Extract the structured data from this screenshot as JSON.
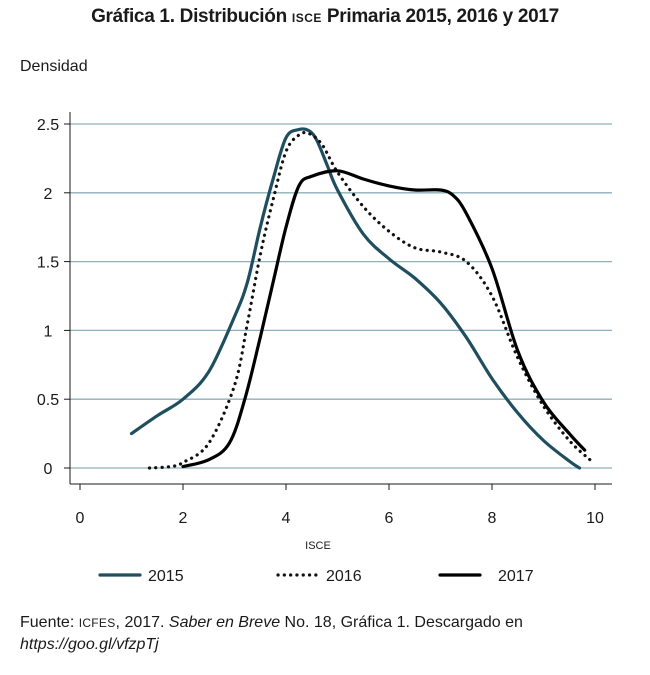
{
  "chart_data": {
    "type": "line",
    "title_pre": "Gráfica 1. Distribución ",
    "title_sc": "ISCE",
    "title_post": " Primaria 2015, 2016 y 2017",
    "ylabel": "Densidad",
    "xlabel": "ISCE",
    "xlim": [
      0,
      10
    ],
    "ylim": [
      0,
      2.5
    ],
    "xticks": [
      "0",
      "2",
      "4",
      "6",
      "8",
      "10"
    ],
    "yticks": [
      "0",
      "0.5",
      "1",
      "1.5",
      "2",
      "2.5"
    ],
    "grid": "horizontal",
    "legend_position": "bottom",
    "series": [
      {
        "name": "2015",
        "color": "#1f4e5f",
        "style": "solid",
        "x": [
          1.0,
          1.5,
          2.0,
          2.5,
          3.0,
          3.25,
          3.5,
          3.75,
          4.0,
          4.25,
          4.45,
          4.6,
          4.8,
          5.0,
          5.5,
          6.0,
          6.5,
          7.0,
          7.5,
          8.0,
          8.5,
          9.0,
          9.5,
          9.7
        ],
        "y": [
          0.25,
          0.38,
          0.5,
          0.7,
          1.1,
          1.35,
          1.75,
          2.1,
          2.4,
          2.46,
          2.45,
          2.38,
          2.2,
          2.02,
          1.7,
          1.52,
          1.38,
          1.2,
          0.95,
          0.65,
          0.4,
          0.2,
          0.05,
          0.0
        ]
      },
      {
        "name": "2016",
        "color": "#111111",
        "style": "dotted",
        "x": [
          1.35,
          1.75,
          2.0,
          2.5,
          3.0,
          3.25,
          3.5,
          3.75,
          4.0,
          4.25,
          4.45,
          4.7,
          5.0,
          5.5,
          6.0,
          6.5,
          7.0,
          7.5,
          8.0,
          8.5,
          9.0,
          9.5,
          9.9
        ],
        "y": [
          0.0,
          0.01,
          0.04,
          0.18,
          0.6,
          1.05,
          1.55,
          1.95,
          2.3,
          2.42,
          2.43,
          2.35,
          2.15,
          1.9,
          1.72,
          1.6,
          1.57,
          1.5,
          1.25,
          0.8,
          0.45,
          0.2,
          0.06
        ]
      },
      {
        "name": "2017",
        "color": "#000000",
        "style": "solid",
        "x": [
          2.0,
          2.5,
          2.9,
          3.2,
          3.5,
          3.75,
          4.0,
          4.25,
          4.5,
          5.0,
          5.5,
          6.0,
          6.5,
          7.0,
          7.25,
          7.5,
          8.0,
          8.5,
          9.0,
          9.5,
          9.8
        ],
        "y": [
          0.01,
          0.06,
          0.18,
          0.5,
          0.95,
          1.35,
          1.75,
          2.05,
          2.12,
          2.16,
          2.1,
          2.05,
          2.02,
          2.02,
          1.98,
          1.85,
          1.45,
          0.85,
          0.48,
          0.25,
          0.13
        ]
      }
    ]
  },
  "source": {
    "prefix": "Fuente: ",
    "icfes_sc": "ICFES",
    "mid": ", 2017. ",
    "italic_title": "Saber en Breve",
    "rest": " No. 18, Gráfica 1. Descargado en ",
    "link": "https://goo.gl/vfzpTj"
  }
}
